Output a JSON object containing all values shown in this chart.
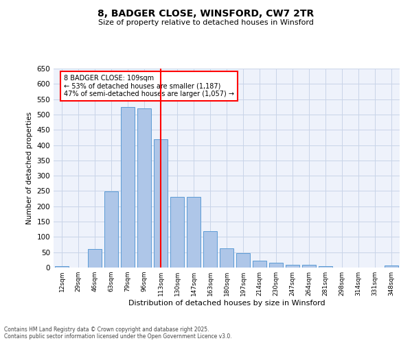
{
  "title": "8, BADGER CLOSE, WINSFORD, CW7 2TR",
  "subtitle": "Size of property relative to detached houses in Winsford",
  "xlabel": "Distribution of detached houses by size in Winsford",
  "ylabel": "Number of detached properties",
  "categories": [
    "12sqm",
    "29sqm",
    "46sqm",
    "63sqm",
    "79sqm",
    "96sqm",
    "113sqm",
    "130sqm",
    "147sqm",
    "163sqm",
    "180sqm",
    "197sqm",
    "214sqm",
    "230sqm",
    "247sqm",
    "264sqm",
    "281sqm",
    "298sqm",
    "314sqm",
    "331sqm",
    "348sqm"
  ],
  "values": [
    5,
    0,
    60,
    248,
    525,
    520,
    420,
    230,
    230,
    118,
    63,
    47,
    23,
    15,
    9,
    8,
    5,
    0,
    0,
    0,
    6
  ],
  "bar_color": "#aec6e8",
  "bar_edge_color": "#5b9bd5",
  "vline_x": 6,
  "vline_color": "red",
  "annotation_text": "8 BADGER CLOSE: 109sqm\n← 53% of detached houses are smaller (1,187)\n47% of semi-detached houses are larger (1,057) →",
  "annotation_box_color": "white",
  "annotation_box_edge": "red",
  "ylim": [
    0,
    650
  ],
  "yticks": [
    0,
    50,
    100,
    150,
    200,
    250,
    300,
    350,
    400,
    450,
    500,
    550,
    600,
    650
  ],
  "footer_line1": "Contains HM Land Registry data © Crown copyright and database right 2025.",
  "footer_line2": "Contains public sector information licensed under the Open Government Licence v3.0.",
  "bg_color": "#eef2fb",
  "grid_color": "#c8d4e8"
}
